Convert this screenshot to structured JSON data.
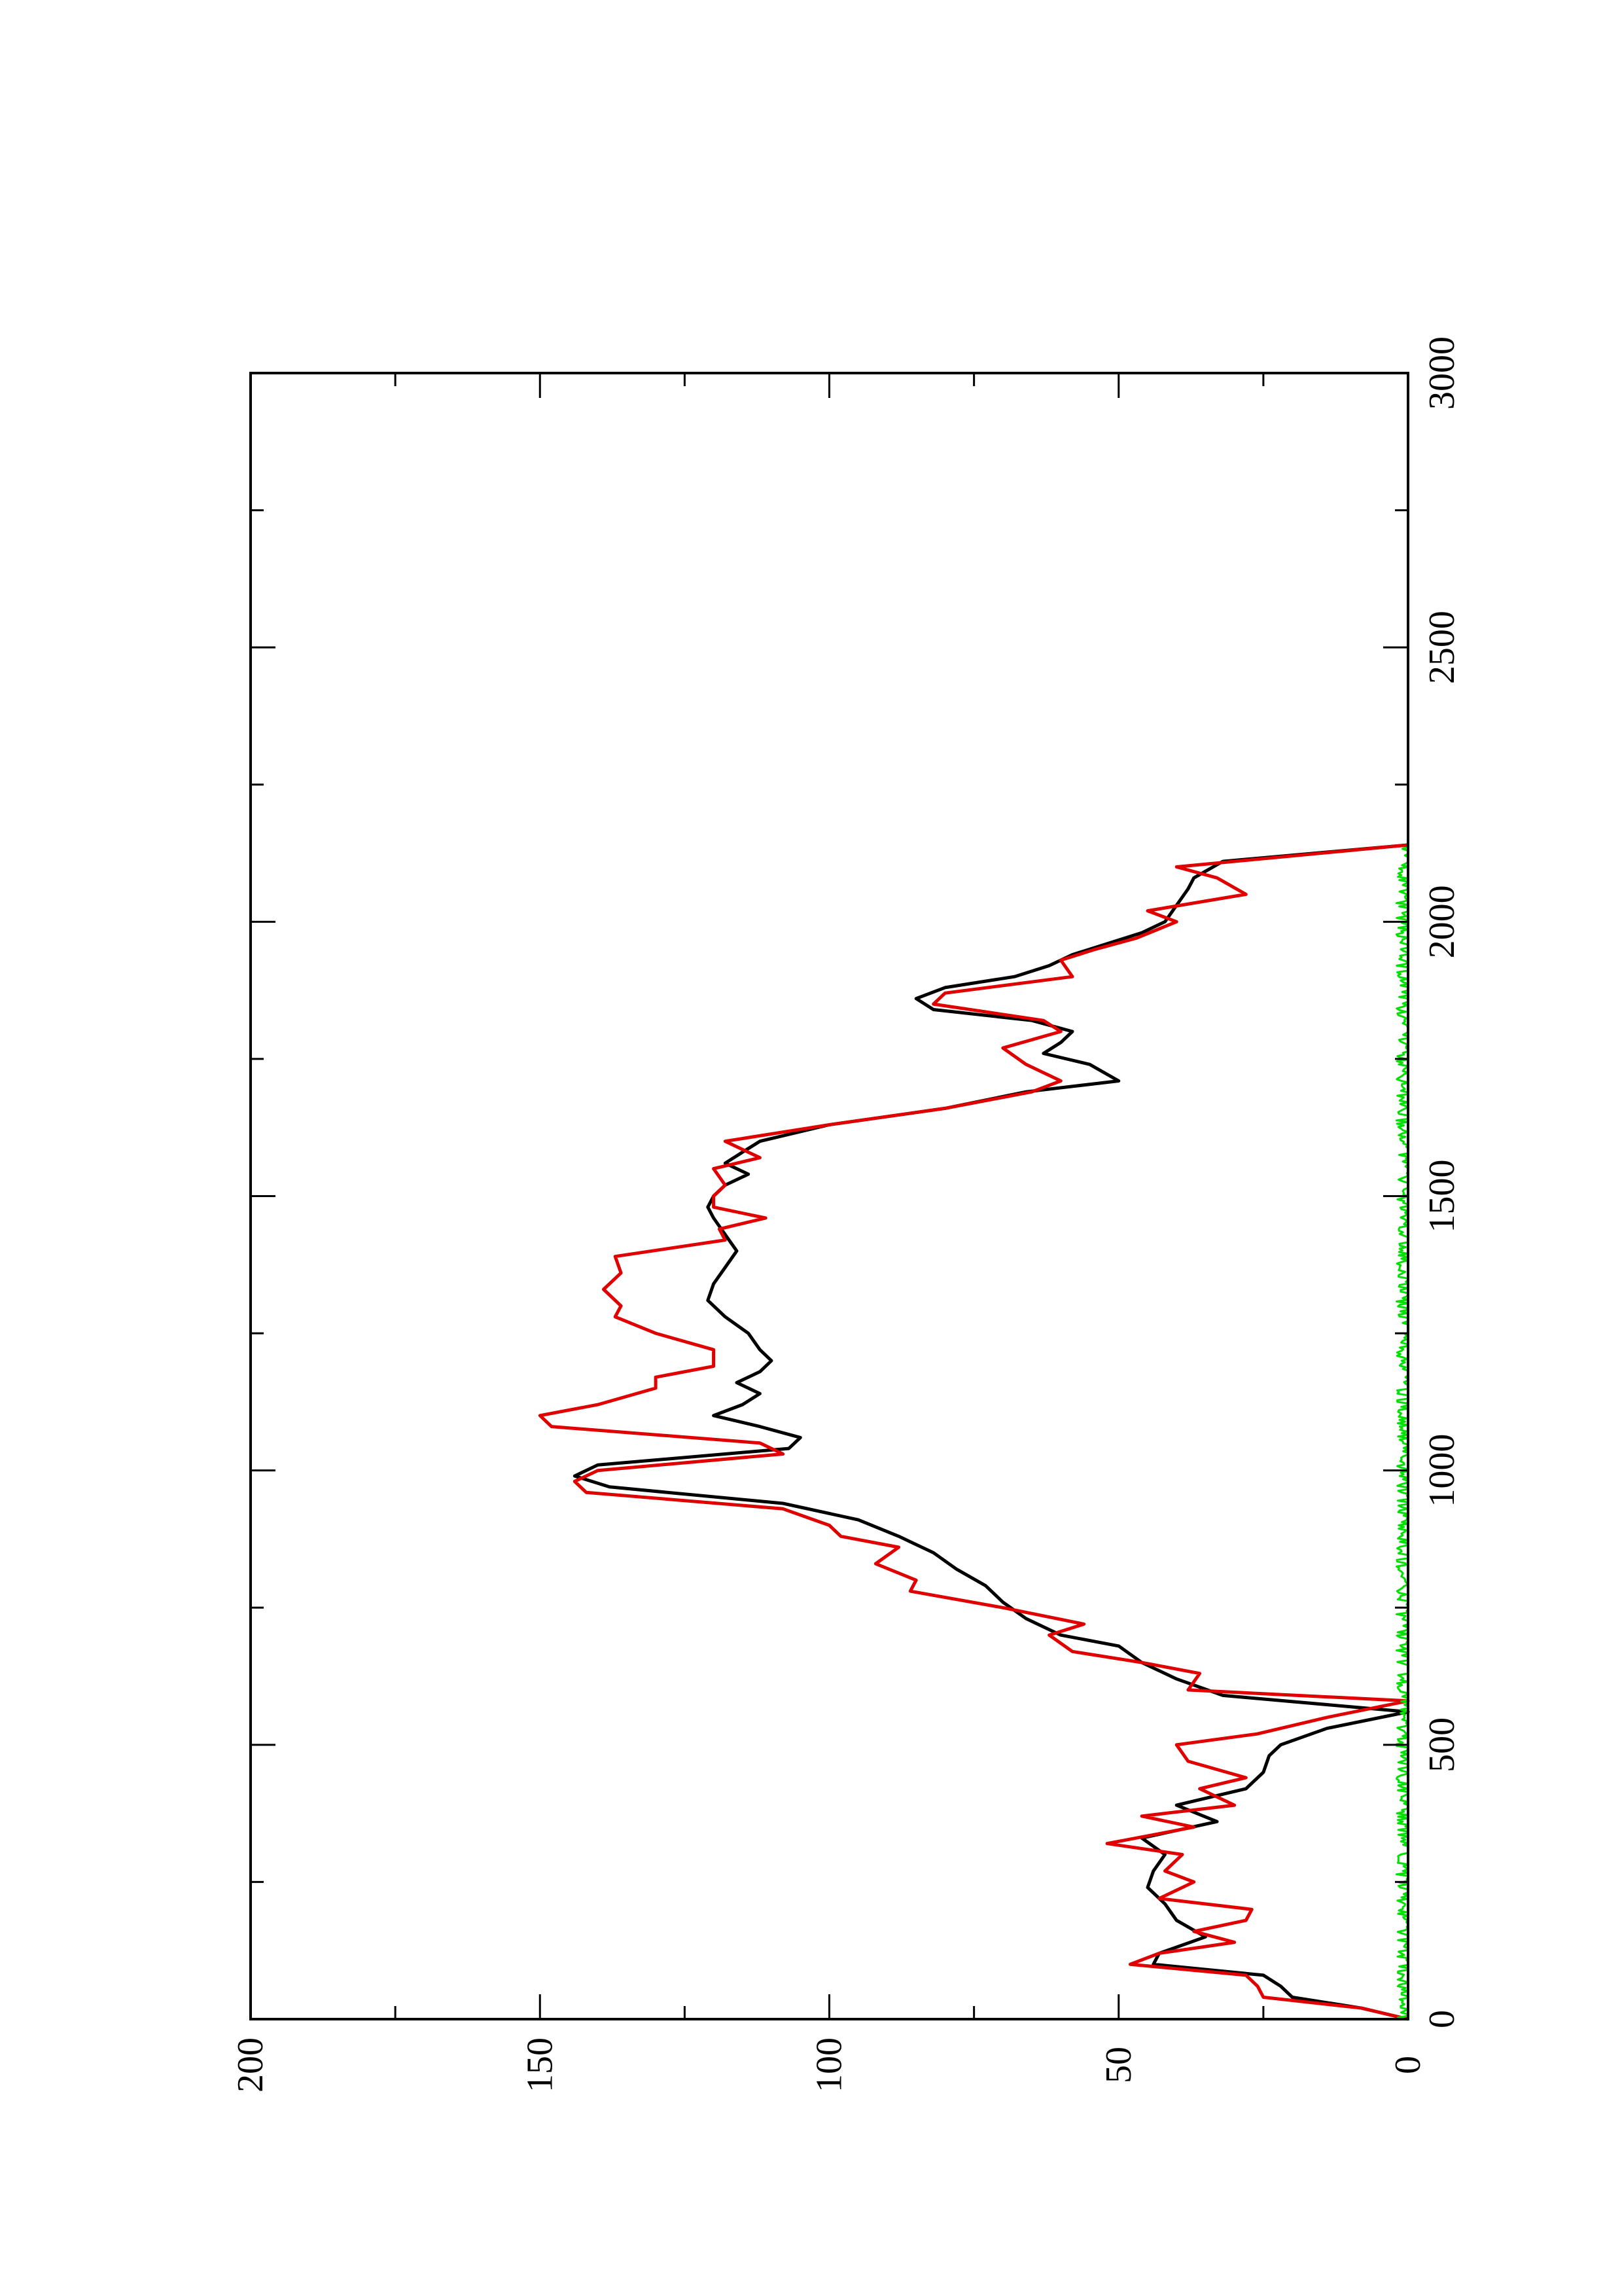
{
  "chart_data": {
    "type": "line",
    "title": "",
    "xlabel": "",
    "ylabel": "",
    "orientation": "rotated-90-ccw",
    "xlim": [
      0,
      3000
    ],
    "ylim": [
      0,
      200
    ],
    "x_major_ticks": [
      0,
      500,
      1000,
      1500,
      2000,
      2500,
      3000
    ],
    "x_tick_labels": [
      "0",
      "500",
      "1000",
      "1500",
      "2000",
      "2500",
      "3000"
    ],
    "y_major_ticks": [
      0,
      50,
      100,
      150,
      200
    ],
    "y_tick_labels": [
      "0",
      "50",
      "100",
      "150",
      "200"
    ],
    "grid": false,
    "legend": "none",
    "series": [
      {
        "color": "#000000",
        "x": [
          0,
          20,
          40,
          60,
          80,
          100,
          120,
          150,
          180,
          210,
          240,
          270,
          300,
          330,
          360,
          390,
          420,
          450,
          480,
          500,
          530,
          560,
          590,
          620,
          650,
          680,
          700,
          730,
          760,
          790,
          820,
          850,
          880,
          910,
          940,
          970,
          990,
          1010,
          1040,
          1060,
          1080,
          1100,
          1120,
          1140,
          1160,
          1180,
          1200,
          1220,
          1250,
          1280,
          1310,
          1340,
          1370,
          1400,
          1430,
          1460,
          1480,
          1500,
          1520,
          1540,
          1560,
          1580,
          1600,
          1630,
          1660,
          1690,
          1710,
          1740,
          1760,
          1780,
          1800,
          1820,
          1840,
          1860,
          1880,
          1900,
          1920,
          1940,
          1960,
          1980,
          2000,
          2030,
          2060,
          2080,
          2110,
          2140
        ],
        "y": [
          0,
          8,
          20,
          22,
          25,
          44,
          43,
          35,
          40,
          42,
          45,
          44,
          42,
          46,
          33,
          40,
          28,
          25,
          24,
          22,
          14,
          0,
          32,
          40,
          46,
          50,
          60,
          66,
          70,
          73,
          78,
          82,
          88,
          95,
          108,
          138,
          144,
          140,
          107,
          105,
          112,
          120,
          115,
          112,
          116,
          112,
          110,
          112,
          114,
          118,
          121,
          120,
          118,
          116,
          118,
          120,
          121,
          120,
          118,
          114,
          118,
          115,
          112,
          100,
          80,
          66,
          50,
          55,
          63,
          60,
          58,
          65,
          82,
          85,
          80,
          68,
          62,
          58,
          52,
          46,
          42,
          40,
          38,
          37,
          32,
          0
        ]
      },
      {
        "color": "#e00000",
        "x": [
          0,
          20,
          40,
          60,
          80,
          100,
          120,
          140,
          160,
          180,
          200,
          220,
          250,
          270,
          300,
          320,
          350,
          370,
          390,
          420,
          440,
          470,
          500,
          520,
          550,
          580,
          600,
          630,
          650,
          670,
          700,
          720,
          750,
          780,
          800,
          830,
          860,
          880,
          900,
          930,
          960,
          980,
          1000,
          1030,
          1050,
          1080,
          1100,
          1120,
          1150,
          1170,
          1190,
          1220,
          1250,
          1280,
          1300,
          1330,
          1360,
          1390,
          1420,
          1440,
          1460,
          1480,
          1500,
          1520,
          1550,
          1570,
          1600,
          1630,
          1660,
          1690,
          1710,
          1740,
          1770,
          1800,
          1820,
          1850,
          1870,
          1900,
          1930,
          1950,
          1970,
          2000,
          2020,
          2050,
          2080,
          2100,
          2140
        ],
        "y": [
          0,
          8,
          25,
          26,
          28,
          48,
          43,
          30,
          37,
          28,
          27,
          43,
          37,
          42,
          39,
          52,
          37,
          46,
          30,
          36,
          28,
          38,
          40,
          26,
          14,
          0,
          38,
          36,
          46,
          58,
          62,
          56,
          70,
          86,
          85,
          92,
          88,
          98,
          100,
          108,
          142,
          144,
          140,
          108,
          112,
          148,
          150,
          140,
          130,
          130,
          120,
          120,
          130,
          137,
          136,
          139,
          136,
          137,
          118,
          119,
          111,
          120,
          120,
          118,
          120,
          112,
          118,
          100,
          80,
          65,
          60,
          66,
          70,
          60,
          63,
          82,
          80,
          58,
          60,
          54,
          47,
          40,
          45,
          28,
          33,
          40,
          0
        ]
      },
      {
        "color": "#00e000",
        "x": [
          0,
          2140
        ],
        "y": [
          0.5,
          0.5
        ],
        "noise_amplitude": 1.5
      }
    ]
  }
}
